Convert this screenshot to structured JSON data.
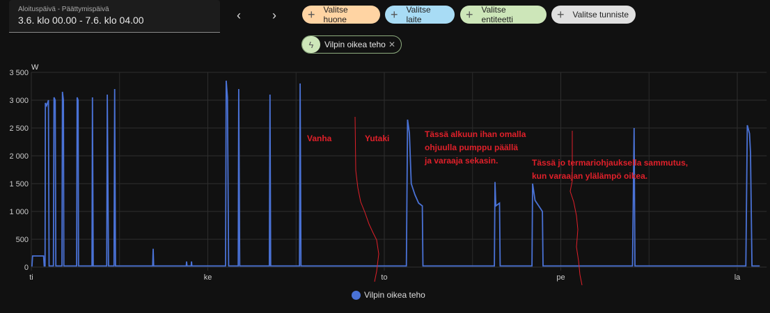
{
  "date_picker": {
    "label": "Aloituspäivä - Päättymispäivä",
    "value": "3.6. klo 00.00 - 7.6. klo 04.00",
    "prev_icon": "chevron-left",
    "next_icon": "chevron-right"
  },
  "chips": [
    {
      "label": "Valitse huone",
      "color": "#ffd4a3"
    },
    {
      "label": "Valitse laite",
      "color": "#a8dcf5"
    },
    {
      "label": "Valitse entiteetti",
      "color": "#cde6b9"
    },
    {
      "label": "Valitse tunniste",
      "color": "#e0e0e0"
    }
  ],
  "selected_entity": {
    "label": "Vilpin oikea teho",
    "icon": "lightning-bolt",
    "remove_icon": "close"
  },
  "annotations": {
    "vanha": "Vanha",
    "yutaki": "Yutaki",
    "note1": [
      "Tässä alkuun ihan omalla",
      "ohjuulla pumppu päällä",
      "ja varaaja sekasin."
    ],
    "note2": [
      "Tässä jo termariohjauksella sammutus,",
      "kun varaajan ylälämpö oikea."
    ],
    "color": "#e0202a"
  },
  "chart_data": {
    "type": "line",
    "ylabel": "W",
    "ylim": [
      0,
      3500
    ],
    "yticks": [
      "0",
      "500",
      "1 000",
      "1 500",
      "2 000",
      "2 500",
      "3 000",
      "3 500"
    ],
    "xticks": [
      {
        "label": "ti",
        "t": "3.6. 00:00"
      },
      {
        "label": "ke",
        "t": "4.6. 00:00"
      },
      {
        "label": "to",
        "t": "5.6. 00:00"
      },
      {
        "label": "pe",
        "t": "6.6. 00:00"
      },
      {
        "label": "la",
        "t": "7.6. 00:00"
      }
    ],
    "xlim": [
      "3.6. 00:00",
      "7.6. 04:00"
    ],
    "grid": true,
    "legend": "bottom",
    "series": [
      {
        "name": "Vilpin oikea teho",
        "color": "#4a72d6",
        "points": [
          [
            "3.6. 00:05",
            20
          ],
          [
            "3.6. 00:10",
            200
          ],
          [
            "3.6. 01:40",
            200
          ],
          [
            "3.6. 01:45",
            20
          ],
          [
            "3.6. 01:52",
            20
          ],
          [
            "3.6. 01:55",
            2950
          ],
          [
            "3.6. 02:05",
            2900
          ],
          [
            "3.6. 02:20",
            3000
          ],
          [
            "3.6. 02:25",
            20
          ],
          [
            "3.6. 03:00",
            20
          ],
          [
            "3.6. 03:05",
            3050
          ],
          [
            "3.6. 03:15",
            3000
          ],
          [
            "3.6. 03:20",
            20
          ],
          [
            "3.6. 04:10",
            20
          ],
          [
            "3.6. 04:14",
            3150
          ],
          [
            "3.6. 04:22",
            3000
          ],
          [
            "3.6. 04:25",
            20
          ],
          [
            "3.6. 06:10",
            20
          ],
          [
            "3.6. 06:14",
            3050
          ],
          [
            "3.6. 06:22",
            3000
          ],
          [
            "3.6. 06:25",
            20
          ],
          [
            "3.6. 08:15",
            20
          ],
          [
            "3.6. 08:19",
            3050
          ],
          [
            "3.6. 08:25",
            20
          ],
          [
            "3.6. 10:15",
            20
          ],
          [
            "3.6. 10:20",
            3100
          ],
          [
            "3.6. 10:30",
            20
          ],
          [
            "3.6. 11:15",
            20
          ],
          [
            "3.6. 11:20",
            3200
          ],
          [
            "3.6. 11:27",
            20
          ],
          [
            "3.6. 16:30",
            20
          ],
          [
            "3.6. 16:34",
            330
          ],
          [
            "3.6. 16:38",
            20
          ],
          [
            "3.6. 21:04",
            20
          ],
          [
            "3.6. 21:07",
            100
          ],
          [
            "3.6. 21:10",
            20
          ],
          [
            "3.6. 21:44",
            20
          ],
          [
            "3.6. 21:47",
            100
          ],
          [
            "3.6. 21:50",
            20
          ],
          [
            "4.6. 02:25",
            20
          ],
          [
            "4.6. 02:30",
            3350
          ],
          [
            "4.6. 02:40",
            3050
          ],
          [
            "4.6. 02:50",
            20
          ],
          [
            "4.6. 04:08",
            20
          ],
          [
            "4.6. 04:12",
            3200
          ],
          [
            "4.6. 04:20",
            20
          ],
          [
            "4.6. 08:22",
            20
          ],
          [
            "4.6. 08:27",
            3100
          ],
          [
            "4.6. 08:33",
            20
          ],
          [
            "4.6. 12:28",
            20
          ],
          [
            "4.6. 12:33",
            3300
          ],
          [
            "4.6. 12:40",
            20
          ],
          [
            "5.6. 03:00",
            20
          ],
          [
            "5.6. 03:10",
            2650
          ],
          [
            "5.6. 03:25",
            2400
          ],
          [
            "5.6. 03:40",
            1500
          ],
          [
            "5.6. 04:10",
            1300
          ],
          [
            "5.6. 04:40",
            1150
          ],
          [
            "5.6. 05:10",
            1100
          ],
          [
            "5.6. 05:15",
            20
          ],
          [
            "5.6. 14:58",
            20
          ],
          [
            "5.6. 15:03",
            1530
          ],
          [
            "5.6. 15:10",
            1100
          ],
          [
            "5.6. 15:40",
            1150
          ],
          [
            "5.6. 15:45",
            20
          ],
          [
            "5.6. 20:05",
            20
          ],
          [
            "5.6. 20:10",
            1500
          ],
          [
            "5.6. 20:30",
            1200
          ],
          [
            "5.6. 21:00",
            1100
          ],
          [
            "5.6. 21:30",
            1000
          ],
          [
            "5.6. 21:35",
            20
          ],
          [
            "6.6. 09:45",
            20
          ],
          [
            "6.6. 09:58",
            2500
          ],
          [
            "6.6. 10:05",
            20
          ],
          [
            "7.6. 01:10",
            20
          ],
          [
            "7.6. 01:22",
            2550
          ],
          [
            "7.6. 01:40",
            2400
          ],
          [
            "7.6. 01:48",
            2050
          ],
          [
            "7.6. 02:00",
            20
          ],
          [
            "7.6. 02:50",
            20
          ]
        ]
      }
    ]
  }
}
